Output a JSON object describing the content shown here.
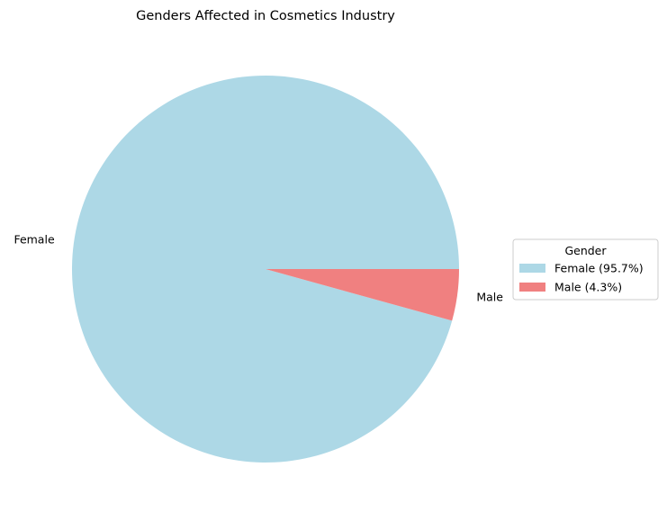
{
  "chart_data": {
    "type": "pie",
    "title": "Genders Affected in Cosmetics Industry",
    "categories": [
      "Female",
      "Male"
    ],
    "values": [
      95.7,
      4.3
    ],
    "value_unit": "%",
    "colors": [
      "#add8e6",
      "#f08080"
    ],
    "start_angle_deg": 0,
    "direction": "counterclockwise",
    "slice_labels": [
      "Female",
      "Male"
    ],
    "legend": {
      "title": "Gender",
      "placement": "right",
      "entries": [
        "Female (95.7%)",
        "Male (4.3%)"
      ]
    }
  }
}
